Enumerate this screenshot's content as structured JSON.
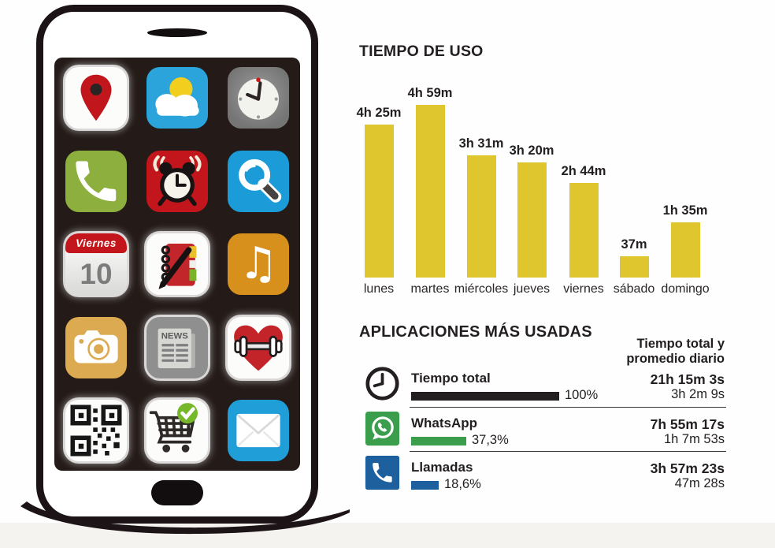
{
  "chart_data": [
    {
      "type": "bar",
      "title": "TIEMPO DE USO",
      "categories": [
        "lunes",
        "martes",
        "miércoles",
        "jueves",
        "viernes",
        "sábado",
        "domingo"
      ],
      "values_minutes": [
        265,
        299,
        211,
        200,
        164,
        37,
        95
      ],
      "value_labels": [
        "4h 25m",
        "4h 59m",
        "3h 31m",
        "3h 20m",
        "2h 44m",
        "37m",
        "1h 35m"
      ],
      "bar_color": "#dfc62f",
      "ylim_minutes": [
        0,
        299
      ],
      "grid": false,
      "legend": "none",
      "value_labels_position": "above-bars"
    },
    {
      "type": "bar",
      "title": "APLICACIONES MÁS USADAS",
      "column_header": [
        "Tiempo total y",
        "promedio diario"
      ],
      "rows": [
        {
          "label": "Tiempo total",
          "icon": "clock-icon",
          "pct": 100,
          "pct_label": "100%",
          "bar_color": "#231f20",
          "total_time": "21h 15m 3s",
          "daily_average": "3h 2m 9s"
        },
        {
          "label": "WhatsApp",
          "icon": "whatsapp-icon",
          "pct": 37.3,
          "pct_label": "37,3%",
          "bar_color": "#3a9e4d",
          "total_time": "7h 55m 17s",
          "daily_average": "1h 7m 53s"
        },
        {
          "label": "Llamadas",
          "icon": "phone-icon",
          "pct": 18.6,
          "pct_label": "18,6%",
          "bar_color": "#1e5f9e",
          "total_time": "3h 57m 23s",
          "daily_average": "47m 28s"
        }
      ]
    }
  ],
  "phone": {
    "calendar": {
      "weekday": "Viernes",
      "day": "10"
    },
    "news_label": "NEWS",
    "app_icons": [
      "maps",
      "weather",
      "clock",
      "phone",
      "alarm",
      "search",
      "calendar",
      "notes",
      "music",
      "camera",
      "news",
      "fitness",
      "qr-code",
      "shopping-cart",
      "mail"
    ]
  }
}
